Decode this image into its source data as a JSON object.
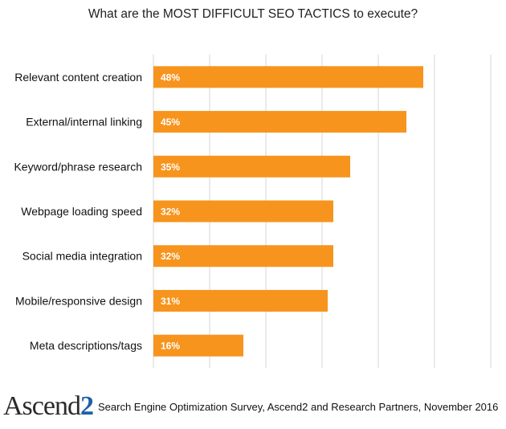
{
  "chart_data": {
    "type": "bar",
    "orientation": "horizontal",
    "title": "What are the MOST DIFFICULT SEO TACTICS to execute?",
    "categories": [
      "Relevant content creation",
      "External/internal linking",
      "Keyword/phrase research",
      "Webpage loading speed",
      "Social media integration",
      "Mobile/responsive design",
      "Meta descriptions/tags"
    ],
    "values": [
      48,
      45,
      35,
      32,
      32,
      31,
      16
    ],
    "value_labels": [
      "48%",
      "45%",
      "35%",
      "32%",
      "32%",
      "31%",
      "16%"
    ],
    "xlim": [
      0,
      60
    ],
    "grid": true,
    "bar_color": "#f7941d"
  },
  "footer": {
    "logo_text": "Ascend",
    "logo_number": "2",
    "source": "Search Engine Optimization Survey, Ascend2 and Research Partners, November 2016"
  }
}
